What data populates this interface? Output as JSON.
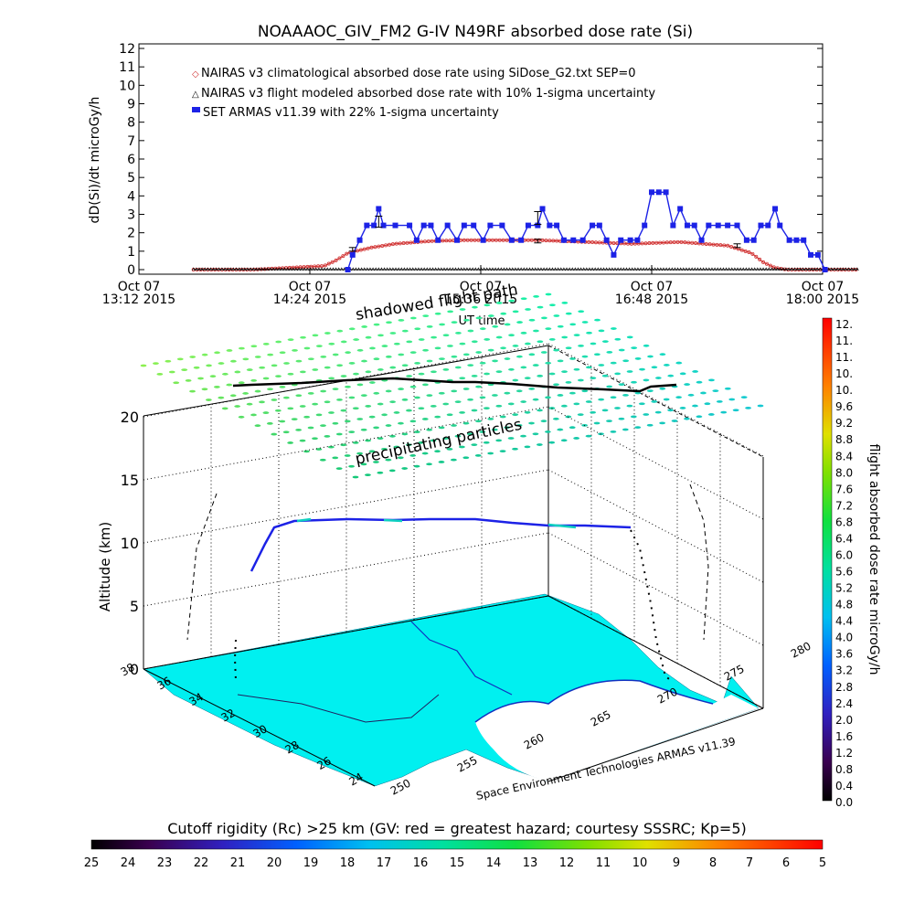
{
  "title": "NOAAAOC_GIV_FM2 G-IV    N49RF   absorbed dose rate (Si)",
  "colors": {
    "nairas_clim": "#d03030",
    "nairas_flight": "#000000",
    "armas": "#1c22e6",
    "map_land": "#00f0f0",
    "grid": "#000000"
  },
  "chart_data": [
    {
      "type": "line",
      "title": "NOAAAOC_GIV_FM2 G-IV    N49RF   absorbed dose rate (Si)",
      "ylabel": "dD(Si)/dt microGy/h",
      "xlabel": "UT time",
      "ylim": [
        0,
        12
      ],
      "yticks": [
        "0",
        "1",
        "2",
        "3",
        "4",
        "5",
        "6",
        "7",
        "8",
        "9",
        "10",
        "11",
        "12"
      ],
      "xticks": [
        {
          "line1": "Oct 07",
          "line2": "13:12 2015",
          "t": 792
        },
        {
          "line1": "Oct 07",
          "line2": "14:24 2015",
          "t": 864
        },
        {
          "line1": "Oct 07",
          "line2": "15:36 2015",
          "t": 936
        },
        {
          "line1": "Oct 07",
          "line2": "16:48 2015",
          "t": 1008
        },
        {
          "line1": "Oct 07",
          "line2": "18:00 2015",
          "t": 1080
        }
      ],
      "legend": [
        "NAIRAS v3 climatological absorbed dose rate using SiDose_G2.txt SEP=0",
        "NAIRAS v3 flight modeled absorbed dose rate with 10% 1-sigma uncertainty",
        "SET ARMAS v11.39 with 22% 1-sigma uncertainty"
      ],
      "legend_position": "top-left",
      "series": [
        {
          "name": "NAIRAS v3 climatological absorbed dose rate using SiDose_G2.txt SEP=0",
          "points": [
            [
              815,
              0
            ],
            [
              840,
              0
            ],
            [
              870,
              0.2
            ],
            [
              875,
              0.5
            ],
            [
              880,
              0.9
            ],
            [
              890,
              1.2
            ],
            [
              900,
              1.4
            ],
            [
              915,
              1.55
            ],
            [
              930,
              1.6
            ],
            [
              960,
              1.6
            ],
            [
              980,
              1.5
            ],
            [
              1000,
              1.4
            ],
            [
              1020,
              1.5
            ],
            [
              1040,
              1.3
            ],
            [
              1050,
              0.9
            ],
            [
              1055,
              0.4
            ],
            [
              1060,
              0.1
            ],
            [
              1065,
              0
            ],
            [
              1095,
              0
            ]
          ]
        },
        {
          "name": "NAIRAS v3 flight modeled absorbed dose rate with 10% 1-sigma uncertainty",
          "points": [
            [
              815,
              0
            ],
            [
              1095,
              0
            ]
          ]
        },
        {
          "name": "SET ARMAS v11.39 with 22% 1-sigma uncertainty",
          "points": [
            [
              880,
              0
            ],
            [
              882,
              0.8
            ],
            [
              885,
              1.6
            ],
            [
              888,
              2.4
            ],
            [
              891,
              2.4
            ],
            [
              893,
              3.3
            ],
            [
              895,
              2.4
            ],
            [
              900,
              2.4
            ],
            [
              906,
              2.4
            ],
            [
              909,
              1.6
            ],
            [
              912,
              2.4
            ],
            [
              915,
              2.4
            ],
            [
              918,
              1.6
            ],
            [
              922,
              2.4
            ],
            [
              926,
              1.6
            ],
            [
              929,
              2.4
            ],
            [
              933,
              2.4
            ],
            [
              937,
              1.6
            ],
            [
              940,
              2.4
            ],
            [
              945,
              2.4
            ],
            [
              949,
              1.6
            ],
            [
              953,
              1.6
            ],
            [
              956,
              2.4
            ],
            [
              960,
              2.4
            ],
            [
              962,
              3.3
            ],
            [
              965,
              2.4
            ],
            [
              968,
              2.4
            ],
            [
              971,
              1.6
            ],
            [
              975,
              1.6
            ],
            [
              979,
              1.6
            ],
            [
              983,
              2.4
            ],
            [
              986,
              2.4
            ],
            [
              989,
              1.6
            ],
            [
              992,
              0.8
            ],
            [
              995,
              1.6
            ],
            [
              999,
              1.6
            ],
            [
              1002,
              1.6
            ],
            [
              1005,
              2.4
            ],
            [
              1008,
              4.2
            ],
            [
              1011,
              4.2
            ],
            [
              1014,
              4.2
            ],
            [
              1017,
              2.4
            ],
            [
              1020,
              3.3
            ],
            [
              1023,
              2.4
            ],
            [
              1026,
              2.4
            ],
            [
              1029,
              1.6
            ],
            [
              1032,
              2.4
            ],
            [
              1036,
              2.4
            ],
            [
              1040,
              2.4
            ],
            [
              1044,
              2.4
            ],
            [
              1048,
              1.6
            ],
            [
              1051,
              1.6
            ],
            [
              1054,
              2.4
            ],
            [
              1057,
              2.4
            ],
            [
              1060,
              3.3
            ],
            [
              1062,
              2.4
            ],
            [
              1066,
              1.6
            ],
            [
              1069,
              1.6
            ],
            [
              1072,
              1.6
            ],
            [
              1075,
              0.8
            ],
            [
              1078,
              0.8
            ],
            [
              1081,
              0
            ]
          ]
        }
      ],
      "error_bars": [
        {
          "t": 893,
          "y": 2.6,
          "err": 0.3
        },
        {
          "t": 882,
          "y": 1.1,
          "err": 0.1
        },
        {
          "t": 960,
          "y": 2.8,
          "err": 0.35
        },
        {
          "t": 960,
          "y": 1.55,
          "err": 0.1
        },
        {
          "t": 1044,
          "y": 1.3,
          "err": 0.1
        }
      ]
    },
    {
      "type": "3d-map",
      "zlabel": "Altitude (km)",
      "zticks": [
        "0",
        "5",
        "10",
        "15",
        "20"
      ],
      "lat_ticks": [
        "36",
        "34",
        "32",
        "30",
        "28",
        "26",
        "24"
      ],
      "lat_ticks_extra": [
        "38"
      ],
      "lon_ticks": [
        "250",
        "255",
        "260",
        "265",
        "270",
        "275",
        "280"
      ],
      "annotations": [
        "shadowed flight path",
        "precipitating particles"
      ],
      "credit": "Space Environment Technologies ARMAS v11.39"
    }
  ],
  "right_colorbar": {
    "label": "flight absorbed dose rate microGy/h",
    "ticks": [
      "12.",
      "11.",
      "11.",
      "10.",
      "10.",
      "9.6",
      "9.2",
      "8.8",
      "8.4",
      "8.0",
      "7.6",
      "7.2",
      "6.8",
      "6.4",
      "6.0",
      "5.6",
      "5.2",
      "4.8",
      "4.4",
      "4.0",
      "3.6",
      "3.2",
      "2.8",
      "2.4",
      "2.0",
      "1.6",
      "1.2",
      "0.8",
      "0.4",
      "0.0"
    ]
  },
  "bottom_colorbar": {
    "label": "Cutoff rigidity (Rc) >25 km (GV: red = greatest hazard; courtesy SSSRC; Kp=5)",
    "ticks": [
      "25",
      "24",
      "23",
      "22",
      "21",
      "20",
      "19",
      "18",
      "17",
      "16",
      "15",
      "14",
      "13",
      "12",
      "11",
      "10",
      "9",
      "8",
      "7",
      "6",
      "5"
    ]
  }
}
